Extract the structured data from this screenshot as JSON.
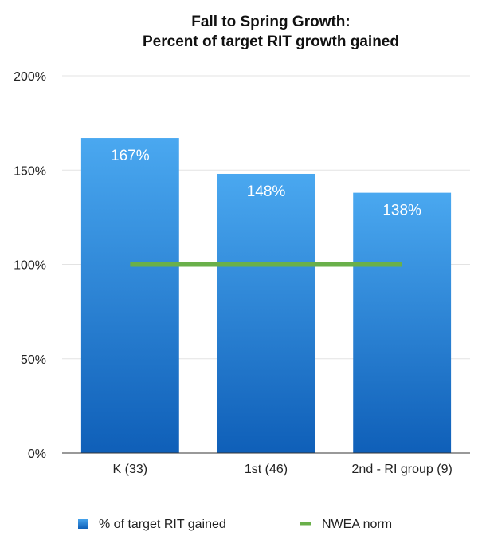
{
  "chart_data": {
    "type": "bar",
    "title": [
      "Fall to Spring Growth:",
      "Percent of target RIT growth gained"
    ],
    "categories": [
      "K (33)",
      "1st (46)",
      "2nd - RI group (9)"
    ],
    "series": [
      {
        "name": "% of target RIT gained",
        "values": [
          167,
          148,
          138
        ],
        "data_labels": [
          "167%",
          "148%",
          "138%"
        ],
        "color": "#2f82d6"
      }
    ],
    "reference_line": {
      "name": "NWEA norm",
      "value": 100,
      "color": "#6ab04a"
    },
    "ylim": [
      0,
      200
    ],
    "yticks": [
      0,
      50,
      100,
      150,
      200
    ],
    "ytick_labels": [
      "0%",
      "50%",
      "100%",
      "150%",
      "200%"
    ],
    "grid": true,
    "legend": "bottom"
  }
}
